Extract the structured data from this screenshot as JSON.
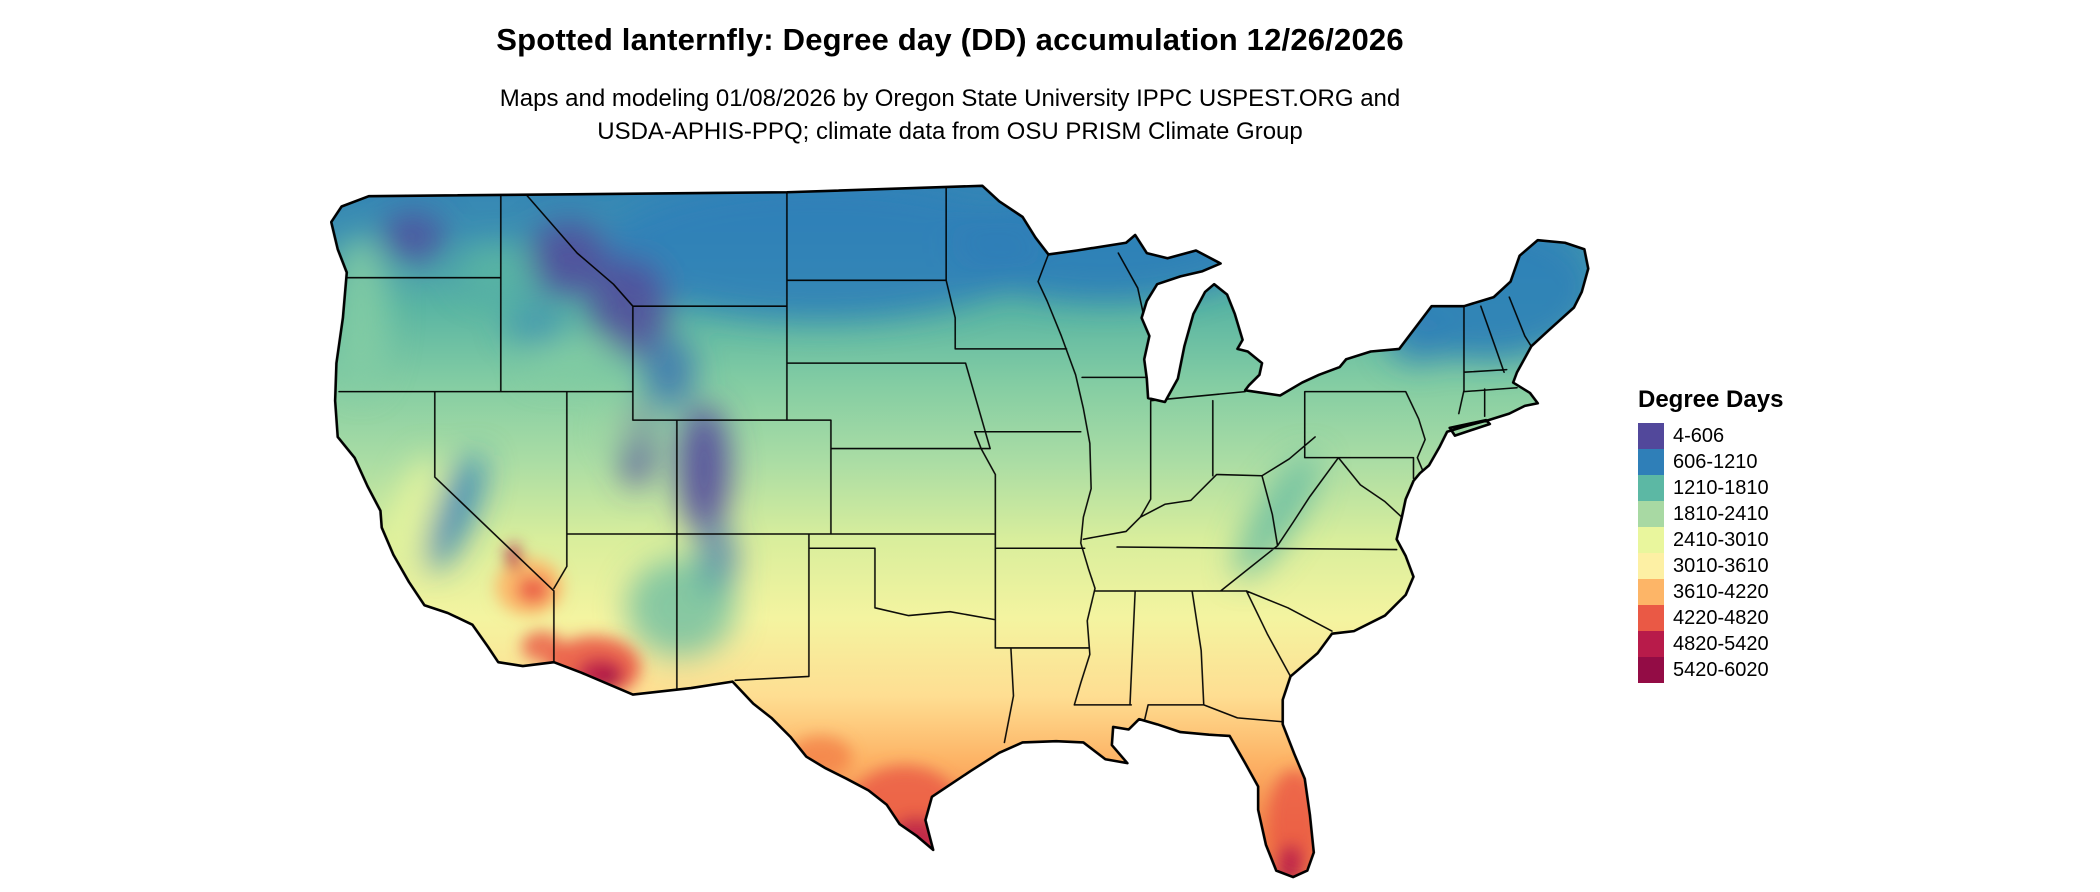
{
  "title": "Spotted lanternfly: Degree day (DD) accumulation 12/26/2026",
  "subtitle_line1": "Maps and modeling 01/08/2026 by Oregon State University IPPC USPEST.ORG and",
  "subtitle_line2": "USDA-APHIS-PPQ; climate data from OSU PRISM Climate Group",
  "map": {
    "name": "Continental United States degree-day choropleth",
    "style": "state boundaries in black over smoothed color classes"
  },
  "legend": {
    "title": "Degree Days",
    "entries": [
      {
        "label": "4-606",
        "color": "#52489b"
      },
      {
        "label": "606-1210",
        "color": "#2f7fb8"
      },
      {
        "label": "1210-1810",
        "color": "#5cb8a4"
      },
      {
        "label": "1810-2410",
        "color": "#a8d9a3"
      },
      {
        "label": "2410-3010",
        "color": "#e9f69d"
      },
      {
        "label": "3010-3610",
        "color": "#fdf0a4"
      },
      {
        "label": "3610-4220",
        "color": "#fdb567"
      },
      {
        "label": "4220-4820",
        "color": "#ea5945"
      },
      {
        "label": "4820-5420",
        "color": "#b81b4a"
      },
      {
        "label": "5420-6020",
        "color": "#930c45"
      }
    ]
  },
  "chart_data": {
    "type": "heatmap",
    "title": "Spotted lanternfly: Degree day (DD) accumulation 12/26/2026",
    "legend_title": "Degree Days",
    "region": "Continental United States",
    "classes": [
      {
        "range": "4-606",
        "min": 4,
        "max": 606,
        "color": "#52489b"
      },
      {
        "range": "606-1210",
        "min": 606,
        "max": 1210,
        "color": "#2f7fb8"
      },
      {
        "range": "1210-1810",
        "min": 1210,
        "max": 1810,
        "color": "#5cb8a4"
      },
      {
        "range": "1810-2410",
        "min": 1810,
        "max": 2410,
        "color": "#a8d9a3"
      },
      {
        "range": "2410-3010",
        "min": 2410,
        "max": 3010,
        "color": "#e9f69d"
      },
      {
        "range": "3010-3610",
        "min": 3010,
        "max": 3610,
        "color": "#fdf0a4"
      },
      {
        "range": "3610-4220",
        "min": 3610,
        "max": 4220,
        "color": "#fdb567"
      },
      {
        "range": "4220-4820",
        "min": 4220,
        "max": 4820,
        "color": "#ea5945"
      },
      {
        "range": "4820-5420",
        "min": 4820,
        "max": 5420,
        "color": "#b81b4a"
      },
      {
        "range": "5420-6020",
        "min": 5420,
        "max": 6020,
        "color": "#930c45"
      }
    ],
    "spatial_pattern": "Low accumulations (purple/blue) across the northern tier, Rockies, Cascades and Sierra Nevada; mid values (green/yellow) across the central US and Appalachians; highest values (orange/red) in southern Arizona, southern Texas and southern Florida",
    "legend_position": "right"
  }
}
